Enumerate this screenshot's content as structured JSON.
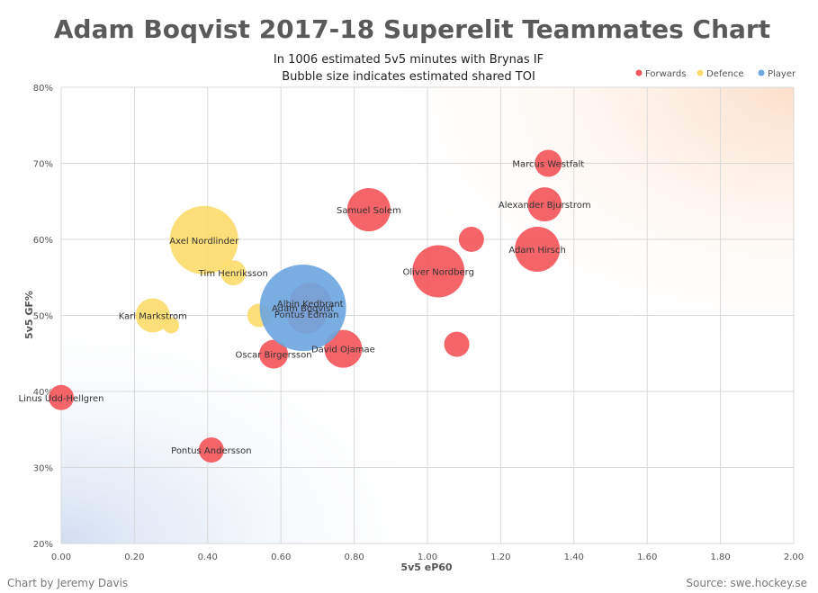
{
  "chart_data": {
    "type": "scatter",
    "title": "Adam Boqvist 2017-18 Superelit Teammates Chart",
    "subtitle": [
      "In 1006 estimated 5v5 minutes with Brynas IF",
      "Bubble size indicates estimated shared TOI"
    ],
    "xlabel": "5v5 eP60",
    "ylabel": "5v5 GF%",
    "xlim": [
      0,
      2
    ],
    "ylim": [
      20,
      80
    ],
    "x_ticks": [
      "0.00",
      "0.20",
      "0.40",
      "0.60",
      "0.80",
      "1.00",
      "1.20",
      "1.40",
      "1.60",
      "1.80",
      "2.00"
    ],
    "y_ticks": [
      "20%",
      "30%",
      "40%",
      "50%",
      "60%",
      "70%",
      "80%"
    ],
    "grid": true,
    "legend_position": "top-right",
    "series": [
      {
        "name": "Forwards",
        "color": "#f4575b",
        "points": [
          {
            "label": "Marcus  Westfalt",
            "x": 1.33,
            "y": 70.0,
            "size": 15
          },
          {
            "label": "Alexander Bjurstrom",
            "x": 1.32,
            "y": 64.6,
            "size": 19
          },
          {
            "label": "Samuel Solem",
            "x": 0.84,
            "y": 63.9,
            "size": 24
          },
          {
            "label": "",
            "x": 1.12,
            "y": 60.0,
            "size": 14
          },
          {
            "label": "Adam Hirsch",
            "x": 1.3,
            "y": 58.7,
            "size": 25
          },
          {
            "label": "Oliver Nordberg",
            "x": 1.03,
            "y": 55.8,
            "size": 29
          },
          {
            "label": "Albin Kedbrant",
            "x": 0.68,
            "y": 51.6,
            "size": 23
          },
          {
            "label": "Pontus  Edman",
            "x": 0.67,
            "y": 50.2,
            "size": 22
          },
          {
            "label": "",
            "x": 1.08,
            "y": 46.2,
            "size": 14
          },
          {
            "label": "David Ojamae",
            "x": 0.77,
            "y": 45.6,
            "size": 21
          },
          {
            "label": "Oscar Birgersson",
            "x": 0.58,
            "y": 44.9,
            "size": 16
          },
          {
            "label": "Linus Udd-Hellgren",
            "x": 0.0,
            "y": 39.2,
            "size": 14
          },
          {
            "label": "Pontus  Andersson",
            "x": 0.41,
            "y": 32.3,
            "size": 14
          }
        ]
      },
      {
        "name": "Defence",
        "color": "#fddc6e",
        "points": [
          {
            "label": "Axel Nordlinder",
            "x": 0.39,
            "y": 59.9,
            "size": 38
          },
          {
            "label": "Tim Henriksson",
            "x": 0.47,
            "y": 55.6,
            "size": 14
          },
          {
            "label": "Karl Markstrom",
            "x": 0.25,
            "y": 50.0,
            "size": 19
          },
          {
            "label": "",
            "x": 0.3,
            "y": 48.7,
            "size": 9
          },
          {
            "label": "",
            "x": 0.54,
            "y": 50.0,
            "size": 13
          }
        ]
      },
      {
        "name": "Player",
        "color": "#6fa6e0",
        "points": [
          {
            "label": "Adam Boqvist",
            "x": 0.66,
            "y": 51.0,
            "size": 48
          }
        ]
      }
    ]
  },
  "footer": {
    "left": "Chart by Jeremy Davis",
    "right": "Source: swe.hockey.se"
  }
}
